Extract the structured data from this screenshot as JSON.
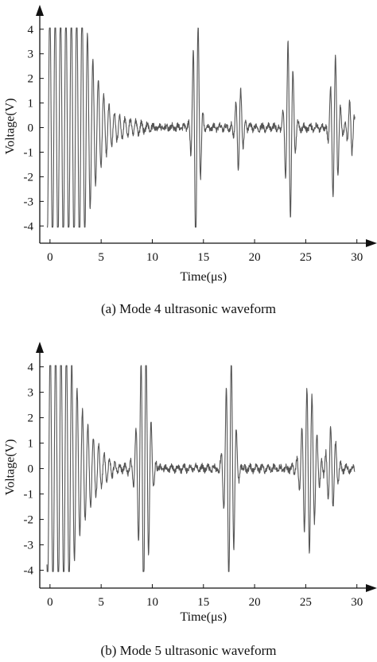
{
  "chart_data": [
    {
      "type": "line",
      "caption": "(a) Mode 4 ultrasonic waveform",
      "xlabel": "Time(μs)",
      "ylabel": "Voltage(V)",
      "xlim": [
        -1,
        31.5
      ],
      "ylim": [
        -4.7,
        4.8
      ],
      "xticks": [
        0,
        5,
        10,
        15,
        20,
        25,
        30
      ],
      "yticks": [
        -4,
        -3,
        -2,
        -1,
        0,
        1,
        2,
        3,
        4
      ],
      "grid": false,
      "series": [
        {
          "color": "#555555",
          "waveform": {
            "t_range": [
              -0.3,
              29.8
            ],
            "noise_amplitude": 0.12,
            "bursts": [
              {
                "center": 1.8,
                "amplitude": 4.0,
                "width": 3.5,
                "frequency": 1.9,
                "decay": "exponential"
              },
              {
                "center": 14.3,
                "amplitude": 4.0,
                "width": 0.45,
                "frequency": 2.0
              },
              {
                "center": 18.5,
                "amplitude": 1.5,
                "width": 0.45,
                "frequency": 2.0
              },
              {
                "center": 23.4,
                "amplitude": 3.0,
                "width": 0.5,
                "frequency": 2.0
              },
              {
                "center": 27.8,
                "amplitude": 2.4,
                "width": 0.5,
                "frequency": 2.0
              },
              {
                "center": 29.4,
                "amplitude": 1.0,
                "width": 0.4,
                "frequency": 2.0
              }
            ]
          }
        }
      ]
    },
    {
      "type": "line",
      "caption": "(b) Mode 5 ultrasonic waveform",
      "xlabel": "Time(μs)",
      "ylabel": "Voltage(V)",
      "xlim": [
        -1,
        31.5
      ],
      "ylim": [
        -4.7,
        4.8
      ],
      "xticks": [
        0,
        5,
        10,
        15,
        20,
        25,
        30
      ],
      "yticks": [
        -4,
        -3,
        -2,
        -1,
        0,
        1,
        2,
        3,
        4
      ],
      "grid": false,
      "series": [
        {
          "color": "#555555",
          "waveform": {
            "t_range": [
              -0.3,
              29.8
            ],
            "noise_amplitude": 0.12,
            "bursts": [
              {
                "center": 1.3,
                "amplitude": 4.0,
                "width": 2.2,
                "frequency": 1.9,
                "decay": "exponential"
              },
              {
                "center": 9.2,
                "amplitude": 4.0,
                "width": 0.7,
                "frequency": 2.0
              },
              {
                "center": 17.6,
                "amplitude": 3.6,
                "width": 0.6,
                "frequency": 2.0
              },
              {
                "center": 25.3,
                "amplitude": 2.7,
                "width": 0.8,
                "frequency": 2.0
              },
              {
                "center": 27.5,
                "amplitude": 1.4,
                "width": 0.6,
                "frequency": 2.0
              }
            ]
          }
        }
      ]
    }
  ]
}
